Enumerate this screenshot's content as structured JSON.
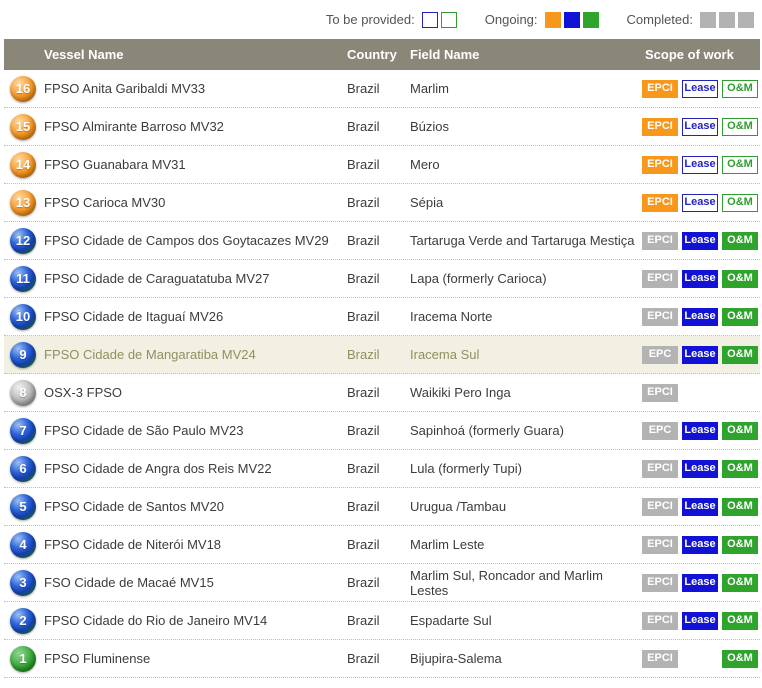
{
  "legend": {
    "groups": [
      {
        "key": "to-be-provided",
        "label": "To be provided:",
        "squares": [
          "outline-blue",
          "outline-green"
        ]
      },
      {
        "key": "ongoing",
        "label": "Ongoing:",
        "squares": [
          "orange",
          "blue",
          "green"
        ]
      },
      {
        "key": "completed",
        "label": "Completed:",
        "squares": [
          "gray",
          "gray",
          "gray"
        ]
      }
    ]
  },
  "colors": {
    "header_bg": "#8b8778",
    "highlight_row_bg": "#f1f0e3",
    "highlight_row_text": "#90905e",
    "orange": "#f7981d",
    "blue": "#1212d6",
    "green": "#2fa42d",
    "gray": "#b3b3b3"
  },
  "table": {
    "headers": [
      "Vessel Name",
      "Country",
      "Field Name",
      "Scope of work"
    ],
    "rows": [
      {
        "num": "16",
        "circle": "orange",
        "vessel": "FPSO Anita Garibaldi MV33",
        "country": "Brazil",
        "field": "Marlim",
        "highlighted": false,
        "badges": [
          {
            "label": "EPCI",
            "style": "orange-filled"
          },
          {
            "label": "Lease",
            "style": "blue-outline"
          },
          {
            "label": "O&M",
            "style": "green-outline"
          }
        ]
      },
      {
        "num": "15",
        "circle": "orange",
        "vessel": "FPSO Almirante Barroso MV32",
        "country": "Brazil",
        "field": "Búzios",
        "highlighted": false,
        "badges": [
          {
            "label": "EPCI",
            "style": "orange-filled"
          },
          {
            "label": "Lease",
            "style": "blue-outline"
          },
          {
            "label": "O&M",
            "style": "green-outline"
          }
        ]
      },
      {
        "num": "14",
        "circle": "orange",
        "vessel": "FPSO Guanabara MV31",
        "country": "Brazil",
        "field": "Mero",
        "highlighted": false,
        "badges": [
          {
            "label": "EPCI",
            "style": "orange-filled"
          },
          {
            "label": "Lease",
            "style": "blue-outline"
          },
          {
            "label": "O&M",
            "style": "green-outline"
          }
        ]
      },
      {
        "num": "13",
        "circle": "orange",
        "vessel": "FPSO Carioca MV30",
        "country": "Brazil",
        "field": "Sépia",
        "highlighted": false,
        "badges": [
          {
            "label": "EPCI",
            "style": "orange-filled"
          },
          {
            "label": "Lease",
            "style": "blue-outline"
          },
          {
            "label": "O&M",
            "style": "green-outline"
          }
        ]
      },
      {
        "num": "12",
        "circle": "bluegreen",
        "vessel": "FPSO Cidade de Campos dos Goytacazes MV29",
        "country": "Brazil",
        "field": "Tartaruga Verde and Tartaruga Mestiça",
        "highlighted": false,
        "badges": [
          {
            "label": "EPCI",
            "style": "gray-filled"
          },
          {
            "label": "Lease",
            "style": "blue-filled"
          },
          {
            "label": "O&M",
            "style": "green-filled"
          }
        ]
      },
      {
        "num": "11",
        "circle": "bluegreen",
        "vessel": "FPSO Cidade de Caraguatatuba MV27",
        "country": "Brazil",
        "field": "Lapa (formerly Carioca)",
        "highlighted": false,
        "badges": [
          {
            "label": "EPCI",
            "style": "gray-filled"
          },
          {
            "label": "Lease",
            "style": "blue-filled"
          },
          {
            "label": "O&M",
            "style": "green-filled"
          }
        ]
      },
      {
        "num": "10",
        "circle": "bluegreen",
        "vessel": "FPSO Cidade de Itaguaí MV26",
        "country": "Brazil",
        "field": "Iracema Norte",
        "highlighted": false,
        "badges": [
          {
            "label": "EPCI",
            "style": "gray-filled"
          },
          {
            "label": "Lease",
            "style": "blue-filled"
          },
          {
            "label": "O&M",
            "style": "green-filled"
          }
        ]
      },
      {
        "num": "9",
        "circle": "bluegreen",
        "vessel": "FPSO Cidade de Mangaratiba MV24",
        "country": "Brazil",
        "field": "Iracema Sul",
        "highlighted": true,
        "badges": [
          {
            "label": "EPC",
            "style": "gray-filled"
          },
          {
            "label": "Lease",
            "style": "blue-filled"
          },
          {
            "label": "O&M",
            "style": "green-filled"
          }
        ]
      },
      {
        "num": "8",
        "circle": "gray",
        "vessel": "OSX-3 FPSO",
        "country": "Brazil",
        "field": "Waikiki Pero Inga",
        "highlighted": false,
        "badges": [
          {
            "label": "EPCI",
            "style": "gray-filled"
          },
          null,
          null
        ]
      },
      {
        "num": "7",
        "circle": "bluegreen",
        "vessel": "FPSO Cidade de São Paulo MV23",
        "country": "Brazil",
        "field": "Sapinhoá (formerly Guara)",
        "highlighted": false,
        "badges": [
          {
            "label": "EPC",
            "style": "gray-filled"
          },
          {
            "label": "Lease",
            "style": "blue-filled"
          },
          {
            "label": "O&M",
            "style": "green-filled"
          }
        ]
      },
      {
        "num": "6",
        "circle": "bluegreen",
        "vessel": "FPSO Cidade de Angra dos Reis MV22",
        "country": "Brazil",
        "field": "Lula (formerly Tupi)",
        "highlighted": false,
        "badges": [
          {
            "label": "EPCI",
            "style": "gray-filled"
          },
          {
            "label": "Lease",
            "style": "blue-filled"
          },
          {
            "label": "O&M",
            "style": "green-filled"
          }
        ]
      },
      {
        "num": "5",
        "circle": "bluegreen",
        "vessel": "FPSO Cidade de Santos MV20",
        "country": "Brazil",
        "field": "Urugua /Tambau",
        "highlighted": false,
        "badges": [
          {
            "label": "EPCI",
            "style": "gray-filled"
          },
          {
            "label": "Lease",
            "style": "blue-filled"
          },
          {
            "label": "O&M",
            "style": "green-filled"
          }
        ]
      },
      {
        "num": "4",
        "circle": "bluegreen",
        "vessel": "FPSO Cidade de Niterói MV18",
        "country": "Brazil",
        "field": "Marlim Leste",
        "highlighted": false,
        "badges": [
          {
            "label": "EPCI",
            "style": "gray-filled"
          },
          {
            "label": "Lease",
            "style": "blue-filled"
          },
          {
            "label": "O&M",
            "style": "green-filled"
          }
        ]
      },
      {
        "num": "3",
        "circle": "bluegreen",
        "vessel": "FSO Cidade de Macaé MV15",
        "country": "Brazil",
        "field": "Marlim Sul, Roncador and Marlim Lestes",
        "highlighted": false,
        "badges": [
          {
            "label": "EPCI",
            "style": "gray-filled"
          },
          {
            "label": "Lease",
            "style": "blue-filled"
          },
          {
            "label": "O&M",
            "style": "green-filled"
          }
        ]
      },
      {
        "num": "2",
        "circle": "bluegreen",
        "vessel": "FPSO Cidade do Rio de Janeiro MV14",
        "country": "Brazil",
        "field": "Espadarte Sul",
        "highlighted": false,
        "badges": [
          {
            "label": "EPCI",
            "style": "gray-filled"
          },
          {
            "label": "Lease",
            "style": "blue-filled"
          },
          {
            "label": "O&M",
            "style": "green-filled"
          }
        ]
      },
      {
        "num": "1",
        "circle": "green",
        "vessel": "FPSO Fluminense",
        "country": "Brazil",
        "field": "Bijupira-Salema",
        "highlighted": false,
        "badges": [
          {
            "label": "EPCI",
            "style": "gray-filled"
          },
          null,
          {
            "label": "O&M",
            "style": "green-filled"
          }
        ]
      }
    ]
  }
}
